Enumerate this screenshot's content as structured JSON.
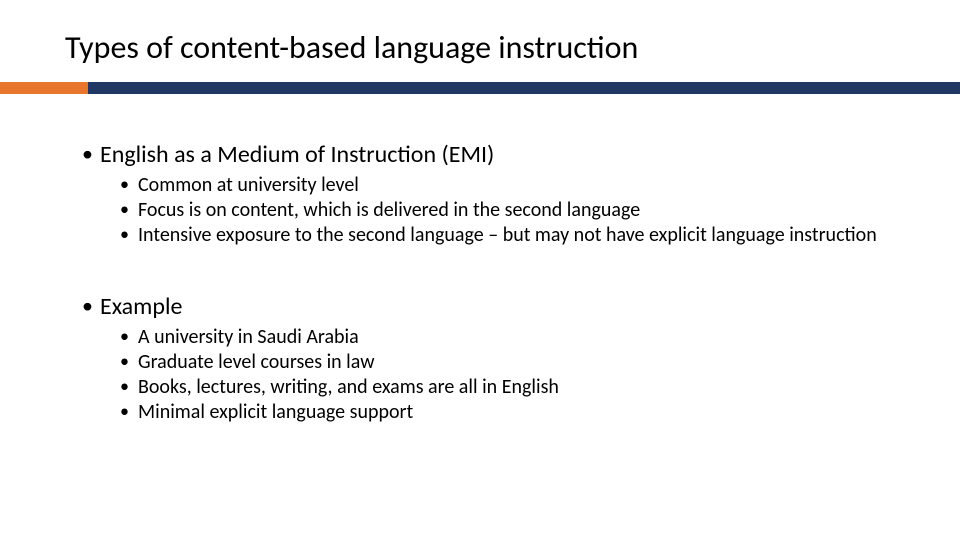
{
  "colors": {
    "accent_orange": "#e8762c",
    "accent_navy": "#1f3864",
    "background": "#ffffff",
    "text": "#000000"
  },
  "typography": {
    "title_fontsize": 32,
    "lvl1_fontsize": 24,
    "lvl2_fontsize": 20,
    "font_family": "Calibri"
  },
  "slide": {
    "title": "Types of content-based language instruction",
    "sections": [
      {
        "heading": "English as a Medium of Instruction (EMI)",
        "items": [
          "Common at university level",
          "Focus is on content, which is delivered in the second language",
          "Intensive exposure to the second language – but may not have explicit language instruction"
        ]
      },
      {
        "heading": "Example",
        "items": [
          "A university in Saudi Arabia",
          "Graduate level courses in law",
          "Books, lectures, writing, and exams are all in English",
          "Minimal explicit language support"
        ]
      }
    ]
  }
}
